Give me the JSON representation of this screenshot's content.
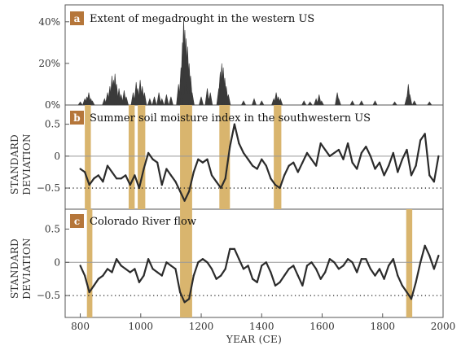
{
  "colors": {
    "drought_fill": "#3a3a3a",
    "series_line": "#2b2b2b",
    "highlight": "#d9b56e",
    "badge": "#b5763a",
    "zero_line": "#999999",
    "frame": "#555555"
  },
  "chart_data": [
    {
      "type": "area",
      "label": "a",
      "title": "Extent of megadrought in the western US",
      "xlim": [
        750,
        2000
      ],
      "ylim": [
        0,
        45
      ],
      "yticks": [
        "0%",
        "20%",
        "40%"
      ],
      "ytick_values": [
        0,
        20,
        40
      ],
      "spikes": [
        {
          "x": 800,
          "y": 1.5
        },
        {
          "x": 815,
          "y": 3
        },
        {
          "x": 822,
          "y": 4
        },
        {
          "x": 828,
          "y": 6
        },
        {
          "x": 835,
          "y": 3
        },
        {
          "x": 840,
          "y": 2
        },
        {
          "x": 880,
          "y": 3
        },
        {
          "x": 890,
          "y": 6
        },
        {
          "x": 898,
          "y": 9
        },
        {
          "x": 905,
          "y": 14
        },
        {
          "x": 910,
          "y": 12
        },
        {
          "x": 915,
          "y": 15
        },
        {
          "x": 920,
          "y": 10
        },
        {
          "x": 928,
          "y": 8
        },
        {
          "x": 935,
          "y": 5
        },
        {
          "x": 945,
          "y": 7
        },
        {
          "x": 952,
          "y": 4
        },
        {
          "x": 975,
          "y": 6
        },
        {
          "x": 985,
          "y": 11
        },
        {
          "x": 990,
          "y": 8
        },
        {
          "x": 998,
          "y": 12
        },
        {
          "x": 1005,
          "y": 9
        },
        {
          "x": 1012,
          "y": 6
        },
        {
          "x": 1030,
          "y": 3
        },
        {
          "x": 1045,
          "y": 4
        },
        {
          "x": 1060,
          "y": 6
        },
        {
          "x": 1070,
          "y": 3
        },
        {
          "x": 1085,
          "y": 5
        },
        {
          "x": 1100,
          "y": 4
        },
        {
          "x": 1125,
          "y": 10
        },
        {
          "x": 1133,
          "y": 18
        },
        {
          "x": 1138,
          "y": 30
        },
        {
          "x": 1142,
          "y": 42
        },
        {
          "x": 1146,
          "y": 36
        },
        {
          "x": 1150,
          "y": 32
        },
        {
          "x": 1155,
          "y": 28
        },
        {
          "x": 1160,
          "y": 20
        },
        {
          "x": 1165,
          "y": 14
        },
        {
          "x": 1170,
          "y": 6
        },
        {
          "x": 1200,
          "y": 4
        },
        {
          "x": 1220,
          "y": 8
        },
        {
          "x": 1230,
          "y": 6
        },
        {
          "x": 1258,
          "y": 8
        },
        {
          "x": 1263,
          "y": 16
        },
        {
          "x": 1268,
          "y": 20
        },
        {
          "x": 1273,
          "y": 18
        },
        {
          "x": 1278,
          "y": 13
        },
        {
          "x": 1283,
          "y": 9
        },
        {
          "x": 1290,
          "y": 5
        },
        {
          "x": 1340,
          "y": 2
        },
        {
          "x": 1375,
          "y": 3
        },
        {
          "x": 1400,
          "y": 2
        },
        {
          "x": 1440,
          "y": 3
        },
        {
          "x": 1448,
          "y": 6
        },
        {
          "x": 1455,
          "y": 4
        },
        {
          "x": 1462,
          "y": 3
        },
        {
          "x": 1540,
          "y": 2
        },
        {
          "x": 1560,
          "y": 1.5
        },
        {
          "x": 1580,
          "y": 3
        },
        {
          "x": 1590,
          "y": 5
        },
        {
          "x": 1598,
          "y": 2
        },
        {
          "x": 1650,
          "y": 6
        },
        {
          "x": 1655,
          "y": 3
        },
        {
          "x": 1700,
          "y": 2
        },
        {
          "x": 1730,
          "y": 2
        },
        {
          "x": 1775,
          "y": 2
        },
        {
          "x": 1840,
          "y": 1.5
        },
        {
          "x": 1880,
          "y": 4
        },
        {
          "x": 1885,
          "y": 10
        },
        {
          "x": 1890,
          "y": 5
        },
        {
          "x": 1905,
          "y": 2
        },
        {
          "x": 1955,
          "y": 1.5
        }
      ]
    },
    {
      "type": "line",
      "label": "b",
      "title": "Summer soil moisture index in the southwestern US",
      "ylabel": [
        "STANDARD",
        "DEVIATION"
      ],
      "xlim": [
        750,
        2000
      ],
      "ylim": [
        -0.78,
        0.75
      ],
      "yticks": [
        "0.5",
        "0",
        "−0.5"
      ],
      "ytick_values": [
        0.5,
        0,
        -0.5
      ],
      "threshold": -0.5,
      "highlights": [
        [
          815,
          835
        ],
        [
          960,
          980
        ],
        [
          990,
          1015
        ],
        [
          1130,
          1170
        ],
        [
          1260,
          1295
        ],
        [
          1440,
          1465
        ]
      ],
      "x": [
        800,
        815,
        830,
        845,
        860,
        875,
        890,
        905,
        920,
        935,
        950,
        965,
        980,
        995,
        1010,
        1025,
        1040,
        1055,
        1070,
        1085,
        1100,
        1115,
        1130,
        1145,
        1160,
        1175,
        1190,
        1205,
        1220,
        1235,
        1250,
        1265,
        1280,
        1295,
        1310,
        1325,
        1340,
        1355,
        1370,
        1385,
        1400,
        1415,
        1430,
        1445,
        1460,
        1475,
        1490,
        1505,
        1520,
        1535,
        1550,
        1565,
        1580,
        1595,
        1610,
        1625,
        1640,
        1655,
        1670,
        1685,
        1700,
        1715,
        1730,
        1745,
        1760,
        1775,
        1790,
        1805,
        1820,
        1835,
        1850,
        1865,
        1880,
        1895,
        1910,
        1925,
        1940,
        1955,
        1970,
        1985
      ],
      "values": [
        -0.2,
        -0.25,
        -0.45,
        -0.35,
        -0.3,
        -0.4,
        -0.15,
        -0.25,
        -0.35,
        -0.35,
        -0.3,
        -0.45,
        -0.3,
        -0.5,
        -0.2,
        0.05,
        -0.05,
        -0.1,
        -0.45,
        -0.2,
        -0.3,
        -0.4,
        -0.55,
        -0.7,
        -0.55,
        -0.25,
        -0.05,
        -0.1,
        -0.05,
        -0.3,
        -0.4,
        -0.5,
        -0.35,
        0.15,
        0.5,
        0.2,
        0.05,
        -0.05,
        -0.15,
        -0.2,
        -0.05,
        -0.15,
        -0.35,
        -0.45,
        -0.5,
        -0.3,
        -0.15,
        -0.1,
        -0.25,
        -0.1,
        0.05,
        -0.05,
        -0.15,
        0.2,
        0.1,
        0.0,
        0.05,
        0.1,
        -0.05,
        0.2,
        -0.1,
        -0.2,
        0.05,
        0.15,
        0.0,
        -0.2,
        -0.1,
        -0.3,
        -0.15,
        0.05,
        -0.25,
        -0.05,
        0.1,
        -0.3,
        -0.15,
        0.25,
        0.35,
        -0.3,
        -0.4,
        0.0
      ]
    },
    {
      "type": "line",
      "label": "c",
      "title": "Colorado River flow",
      "ylabel": [
        "STANDARD",
        "DEVIATION"
      ],
      "xlim": [
        750,
        2000
      ],
      "ylim": [
        -0.78,
        0.75
      ],
      "yticks": [
        "0.5",
        "0",
        "−0.5"
      ],
      "ytick_values": [
        0.5,
        0,
        -0.5
      ],
      "threshold": -0.5,
      "highlights": [
        [
          822,
          840
        ],
        [
          1130,
          1170
        ],
        [
          1878,
          1898
        ]
      ],
      "xlabel": "YEAR (CE)",
      "xticks": [
        "800",
        "1000",
        "1200",
        "1400",
        "1600",
        "1800",
        "2000"
      ],
      "xtick_values": [
        800,
        1000,
        1200,
        1400,
        1600,
        1800,
        2000
      ],
      "x": [
        800,
        815,
        830,
        845,
        860,
        875,
        890,
        905,
        920,
        935,
        950,
        965,
        980,
        995,
        1010,
        1025,
        1040,
        1055,
        1070,
        1085,
        1100,
        1115,
        1130,
        1145,
        1160,
        1175,
        1190,
        1205,
        1220,
        1235,
        1250,
        1265,
        1280,
        1295,
        1310,
        1325,
        1340,
        1355,
        1370,
        1385,
        1400,
        1415,
        1430,
        1445,
        1460,
        1475,
        1490,
        1505,
        1520,
        1535,
        1550,
        1565,
        1580,
        1595,
        1610,
        1625,
        1640,
        1655,
        1670,
        1685,
        1700,
        1715,
        1730,
        1745,
        1760,
        1775,
        1790,
        1805,
        1820,
        1835,
        1850,
        1865,
        1880,
        1895,
        1910,
        1925,
        1940,
        1955,
        1970,
        1985
      ],
      "values": [
        -0.05,
        -0.2,
        -0.45,
        -0.35,
        -0.25,
        -0.2,
        -0.1,
        -0.15,
        0.05,
        -0.05,
        -0.1,
        -0.15,
        -0.1,
        -0.3,
        -0.2,
        0.05,
        -0.1,
        -0.15,
        -0.2,
        0.0,
        -0.05,
        -0.1,
        -0.45,
        -0.6,
        -0.55,
        -0.2,
        0.0,
        0.05,
        0.0,
        -0.1,
        -0.25,
        -0.2,
        -0.1,
        0.2,
        0.2,
        0.05,
        -0.1,
        -0.05,
        -0.25,
        -0.3,
        -0.05,
        0.0,
        -0.15,
        -0.35,
        -0.3,
        -0.2,
        -0.1,
        -0.05,
        -0.2,
        -0.35,
        -0.05,
        0.0,
        -0.1,
        -0.25,
        -0.15,
        0.05,
        0.0,
        -0.1,
        -0.05,
        0.05,
        0.0,
        -0.15,
        0.05,
        0.05,
        -0.1,
        -0.2,
        -0.1,
        -0.25,
        -0.05,
        0.05,
        -0.2,
        -0.35,
        -0.45,
        -0.55,
        -0.3,
        0.0,
        0.25,
        0.1,
        -0.1,
        0.1
      ]
    }
  ]
}
